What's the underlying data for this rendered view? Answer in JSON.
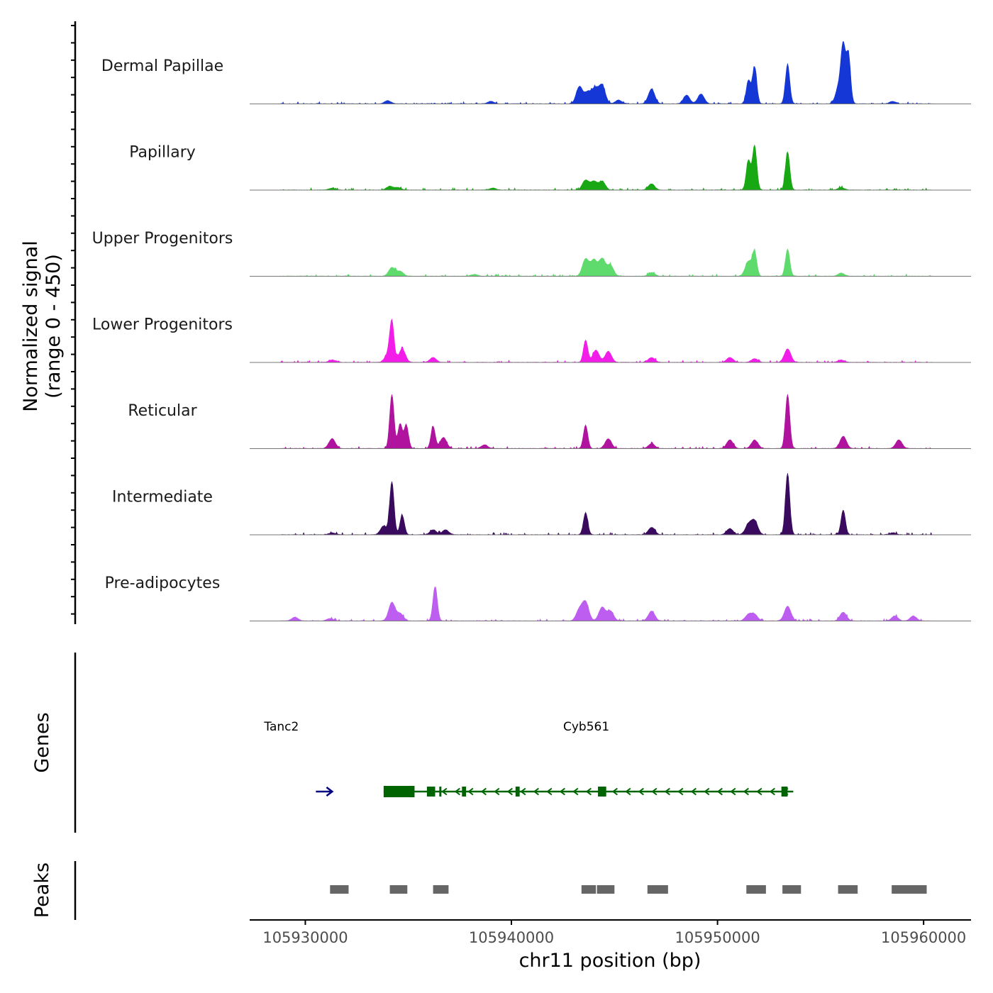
{
  "chart_data": {
    "type": "area",
    "title": "",
    "ylabel_line1": "Normalized signal",
    "ylabel_line2": "(range 0 - 450)",
    "ylim": [
      0,
      450
    ],
    "xlabel": "chr11 position (bp)",
    "xlim": [
      105927300,
      105962300
    ],
    "x_ticks": [
      {
        "value": 105930000,
        "label": "105930000"
      },
      {
        "value": 105940000,
        "label": "105940000"
      },
      {
        "value": 105950000,
        "label": "105950000"
      },
      {
        "value": 105960000,
        "label": "105960000"
      }
    ],
    "coverage_range": [
      105928800,
      105960400
    ],
    "tracks": [
      {
        "name": "Dermal Papillae",
        "color": "#1537D6",
        "peaks": [
          [
            105943300,
            140
          ],
          [
            105943700,
            90
          ],
          [
            105944050,
            120
          ],
          [
            105944400,
            150
          ],
          [
            105946800,
            120
          ],
          [
            105948500,
            70
          ],
          [
            105949200,
            80
          ],
          [
            105951500,
            190
          ],
          [
            105951800,
            300
          ],
          [
            105953400,
            320
          ],
          [
            105956100,
            420
          ],
          [
            105956350,
            400
          ],
          [
            105955900,
            150
          ],
          [
            105945200,
            30
          ],
          [
            105934000,
            25
          ],
          [
            105939000,
            20
          ],
          [
            105958500,
            20
          ]
        ]
      },
      {
        "name": "Papillary",
        "color": "#18A814",
        "peaks": [
          [
            105951500,
            240
          ],
          [
            105951800,
            360
          ],
          [
            105953400,
            310
          ],
          [
            105943600,
            80
          ],
          [
            105944000,
            70
          ],
          [
            105944400,
            70
          ],
          [
            105946800,
            50
          ],
          [
            105934100,
            30
          ],
          [
            105934500,
            20
          ],
          [
            105956000,
            20
          ],
          [
            105931300,
            15
          ],
          [
            105939100,
            15
          ]
        ]
      },
      {
        "name": "Upper Progenitors",
        "color": "#5FDB6E",
        "peaks": [
          [
            105943600,
            140
          ],
          [
            105944000,
            130
          ],
          [
            105944400,
            140
          ],
          [
            105944800,
            90
          ],
          [
            105951500,
            120
          ],
          [
            105951800,
            190
          ],
          [
            105953400,
            220
          ],
          [
            105934200,
            70
          ],
          [
            105934600,
            40
          ],
          [
            105946800,
            30
          ],
          [
            105956000,
            25
          ],
          [
            105938200,
            15
          ]
        ]
      },
      {
        "name": "Lower Progenitors",
        "color": "#F21DE8",
        "peaks": [
          [
            105934200,
            320
          ],
          [
            105934700,
            110
          ],
          [
            105934000,
            60
          ],
          [
            105936200,
            40
          ],
          [
            105943600,
            180
          ],
          [
            105944100,
            100
          ],
          [
            105944700,
            90
          ],
          [
            105953400,
            110
          ],
          [
            105950600,
            40
          ],
          [
            105946800,
            40
          ],
          [
            105951800,
            30
          ],
          [
            105931300,
            20
          ],
          [
            105956000,
            20
          ]
        ]
      },
      {
        "name": "Reticular",
        "color": "#B0149E",
        "peaks": [
          [
            105934200,
            440
          ],
          [
            105934600,
            200
          ],
          [
            105934900,
            190
          ],
          [
            105936200,
            180
          ],
          [
            105936700,
            90
          ],
          [
            105931300,
            80
          ],
          [
            105943600,
            190
          ],
          [
            105944700,
            80
          ],
          [
            105953400,
            440
          ],
          [
            105956100,
            100
          ],
          [
            105958800,
            70
          ],
          [
            105950600,
            70
          ],
          [
            105951800,
            70
          ],
          [
            105946800,
            40
          ],
          [
            105938700,
            30
          ]
        ]
      },
      {
        "name": "Intermediate",
        "color": "#3A0A5E",
        "peaks": [
          [
            105934200,
            430
          ],
          [
            105934700,
            160
          ],
          [
            105933800,
            70
          ],
          [
            105936200,
            40
          ],
          [
            105936800,
            40
          ],
          [
            105943600,
            180
          ],
          [
            105953400,
            500
          ],
          [
            105956100,
            200
          ],
          [
            105951800,
            110
          ],
          [
            105951500,
            80
          ],
          [
            105950600,
            50
          ],
          [
            105946800,
            60
          ],
          [
            105931300,
            15
          ],
          [
            105958500,
            15
          ]
        ]
      },
      {
        "name": "Pre-adipocytes",
        "color": "#BD5EF0",
        "peaks": [
          [
            105936300,
            280
          ],
          [
            105934200,
            150
          ],
          [
            105934600,
            60
          ],
          [
            105943600,
            150
          ],
          [
            105943300,
            90
          ],
          [
            105944400,
            110
          ],
          [
            105944800,
            80
          ],
          [
            105946800,
            80
          ],
          [
            105951500,
            50
          ],
          [
            105951800,
            50
          ],
          [
            105953400,
            120
          ],
          [
            105956100,
            70
          ],
          [
            105958600,
            40
          ],
          [
            105959500,
            40
          ],
          [
            105929500,
            30
          ],
          [
            105931200,
            20
          ]
        ]
      }
    ],
    "genes_label": "Genes",
    "genes": [
      {
        "name": "Tanc2",
        "color": "#000080",
        "strand": "+",
        "start": 105929000,
        "end": 105929400,
        "label_x": 105929000
      },
      {
        "name": "Cyb561",
        "color": "#006400",
        "strand": "-",
        "start": 105933800,
        "end": 105953400,
        "label_x": 105943500,
        "exons": [
          [
            105933800,
            105935300
          ],
          [
            105935900,
            105936300
          ],
          [
            105936500,
            105936600
          ],
          [
            105937600,
            105937800
          ],
          [
            105940200,
            105940400
          ],
          [
            105944200,
            105944600
          ],
          [
            105953100,
            105953400
          ]
        ]
      }
    ],
    "peaks_label": "Peaks",
    "peak_regions": [
      [
        105931200,
        105932100
      ],
      [
        105934100,
        105934950
      ],
      [
        105936200,
        105936950
      ],
      [
        105943400,
        105944100
      ],
      [
        105944150,
        105945000
      ],
      [
        105946600,
        105947600
      ],
      [
        105951400,
        105952350
      ],
      [
        105953150,
        105954050
      ],
      [
        105955850,
        105956800
      ],
      [
        105958450,
        105960150
      ]
    ]
  }
}
